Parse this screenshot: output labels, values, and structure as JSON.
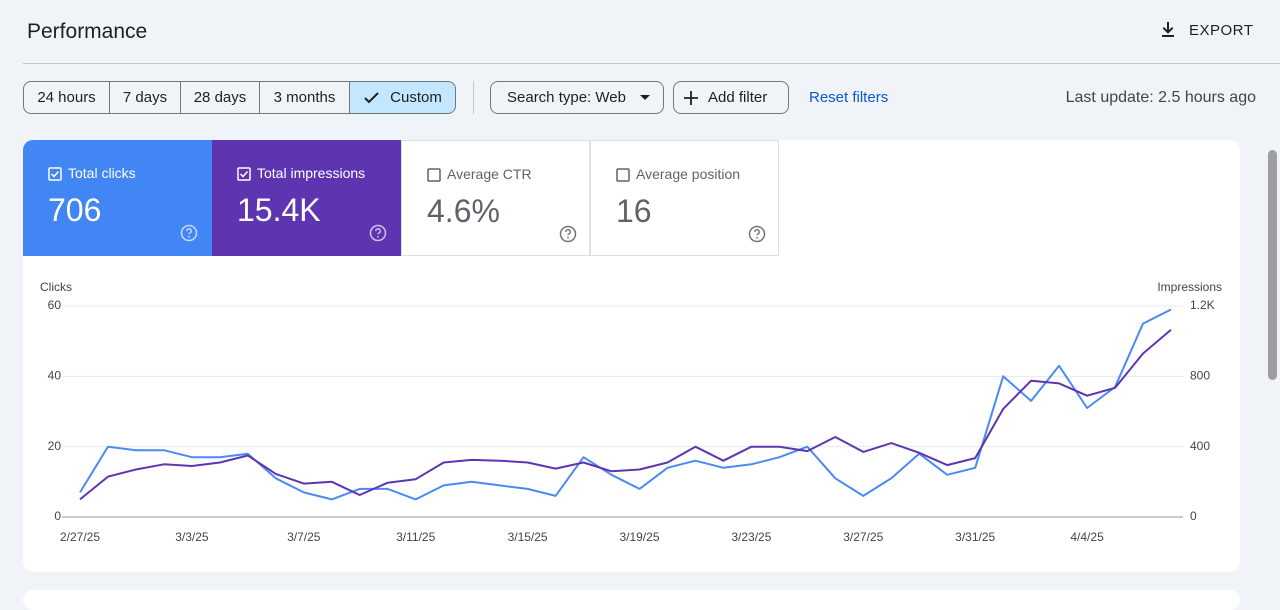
{
  "header": {
    "title": "Performance",
    "export": "EXPORT"
  },
  "toolbar": {
    "ranges": [
      "24 hours",
      "7 days",
      "28 days",
      "3 months",
      "Custom"
    ],
    "search_type": "Search type: Web",
    "add_filter": "Add filter",
    "reset_filters": "Reset filters",
    "last_update": "Last update: 2.5 hours ago"
  },
  "metrics": [
    {
      "label": "Total clicks",
      "value": "706"
    },
    {
      "label": "Total impressions",
      "value": "15.4K"
    },
    {
      "label": "Average CTR",
      "value": "4.6%"
    },
    {
      "label": "Average position",
      "value": "16"
    }
  ],
  "chart_data": {
    "type": "line",
    "y_label": "Clicks",
    "y2_label": "Impressions",
    "categories": [
      "2/27/25",
      null,
      null,
      null,
      "3/3/25",
      null,
      null,
      null,
      "3/7/25",
      null,
      null,
      null,
      "3/11/25",
      null,
      null,
      null,
      "3/15/25",
      null,
      null,
      null,
      "3/19/25",
      null,
      null,
      null,
      "3/23/25",
      null,
      null,
      null,
      "3/27/25",
      null,
      null,
      null,
      "3/31/25",
      null,
      null,
      null,
      "4/4/25",
      null,
      null,
      null
    ],
    "series": [
      {
        "name": "Clicks",
        "color": "#4a8af4",
        "values": [
          7,
          20,
          19,
          19,
          17,
          17,
          18,
          11,
          7,
          5,
          8,
          8,
          5,
          9,
          10,
          9,
          8,
          6,
          17,
          12,
          8,
          14,
          16,
          14,
          15,
          17,
          20,
          11,
          6,
          11,
          18,
          12,
          14,
          40,
          33,
          43,
          31,
          37,
          55,
          59
        ]
      },
      {
        "name": "Impressions",
        "color": "#5e35b1",
        "axis": "y2",
        "values": [
          100,
          230,
          270,
          300,
          290,
          310,
          350,
          245,
          190,
          200,
          125,
          195,
          215,
          310,
          325,
          320,
          310,
          275,
          310,
          260,
          270,
          310,
          400,
          320,
          400,
          400,
          375,
          455,
          370,
          420,
          365,
          295,
          335,
          615,
          775,
          760,
          690,
          735,
          930,
          1065
        ]
      }
    ],
    "ylim": [
      0,
      60
    ],
    "yticks": [
      0,
      20,
      40,
      60
    ],
    "y2lim": [
      0,
      1200
    ],
    "y2ticks": [
      0,
      400,
      800,
      {
        "value": 1200,
        "label": "1.2K"
      }
    ],
    "grid": true
  }
}
